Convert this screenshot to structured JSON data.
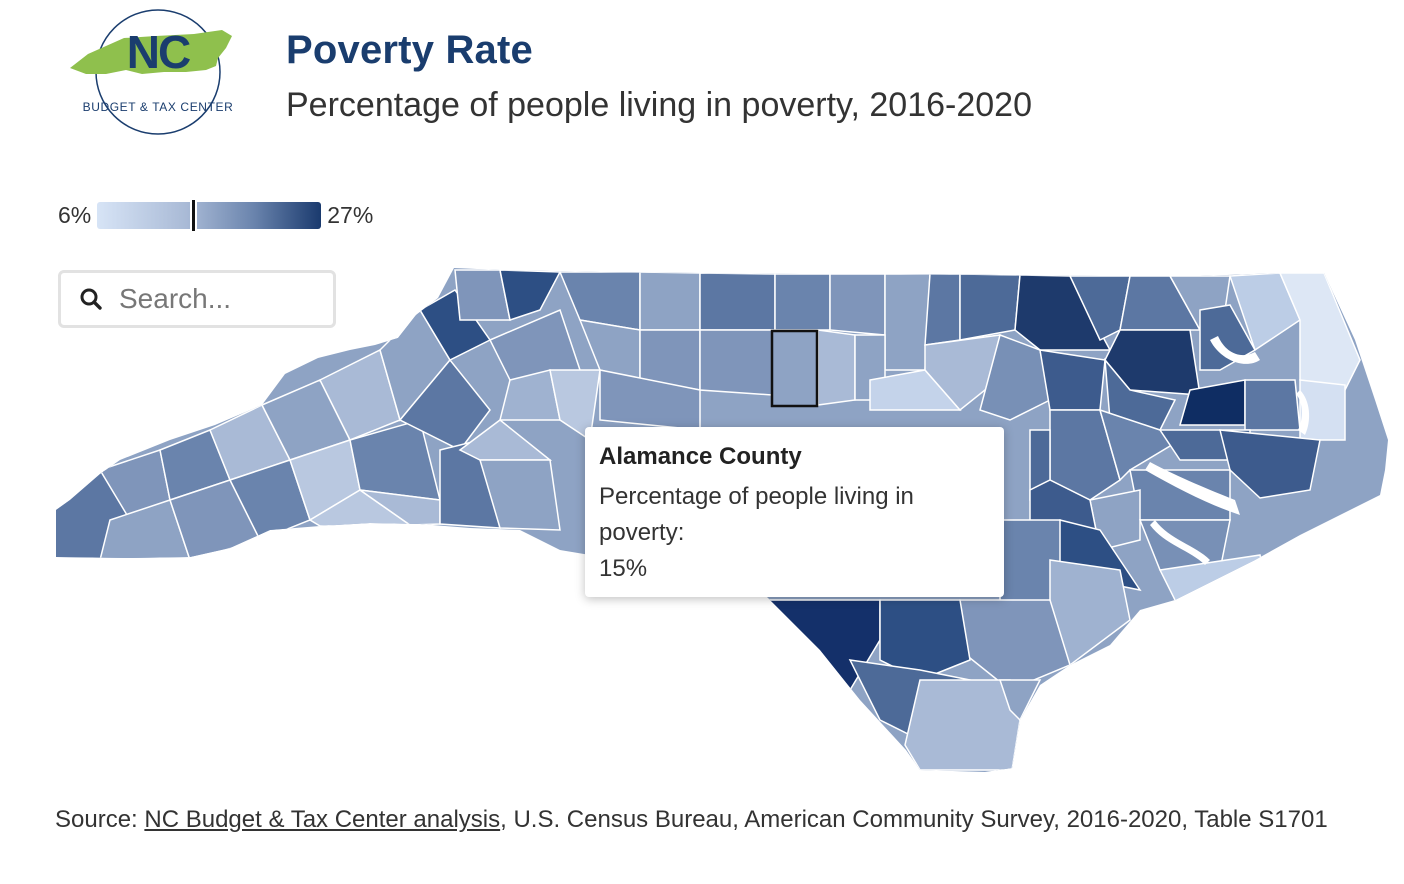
{
  "header": {
    "logo_text": "NC",
    "logo_subtext": "BUDGET & TAX CENTER",
    "title": "Poverty Rate",
    "subtitle": "Percentage of people living in poverty, 2016-2020"
  },
  "legend": {
    "min_label": "6%",
    "max_label": "27%",
    "min_value": 6,
    "max_value": 27,
    "highlight_value": 15,
    "colors": [
      "#d7e4f6",
      "#a9bad6",
      "#6a84ad",
      "#1a3a6e"
    ]
  },
  "search": {
    "placeholder": "Search...",
    "icon": "search-icon"
  },
  "tooltip": {
    "county": "Alamance County",
    "label": "Percentage of people living in poverty:",
    "value": "15%"
  },
  "source": {
    "prefix": "Source: ",
    "link_text": "NC Budget & Tax Center analysis",
    "rest": ", U.S. Census Bureau, American Community Survey, 2016-2020, Table S1701"
  },
  "map": {
    "selected_county": "Alamance County",
    "border_color": "#ffffff",
    "selected_stroke": "#111111"
  }
}
